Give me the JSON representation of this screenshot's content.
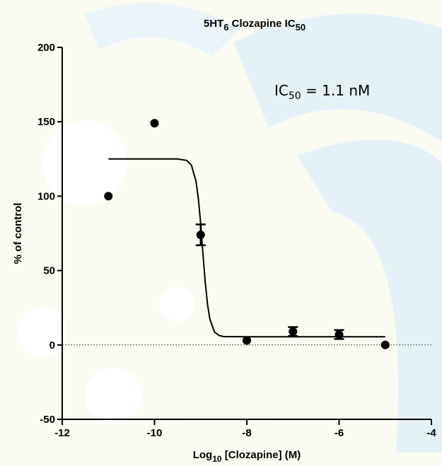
{
  "chart_data": {
    "type": "scatter",
    "title_parts": [
      "5HT",
      "6",
      " Clozapine IC",
      "50"
    ],
    "annotation_parts": [
      "IC",
      "50",
      " = 1.1 nM"
    ],
    "xlabel_parts": [
      "Log",
      "10",
      " [Clozapine] (M)"
    ],
    "ylabel": "% of control",
    "x": [
      -11,
      -10,
      -9,
      -8,
      -7,
      -6,
      -5
    ],
    "series": [
      {
        "color": "#000000",
        "values": [
          100,
          149,
          74,
          3,
          9,
          7,
          0
        ],
        "errors": [
          null,
          null,
          7,
          null,
          3,
          3,
          null
        ]
      }
    ],
    "fit": {
      "color": "#000000",
      "x": [
        -11,
        -10,
        -9.5,
        -9.3,
        -9.2,
        -9.1,
        -9.05,
        -9.0,
        -8.95,
        -8.9,
        -8.85,
        -8.8,
        -8.7,
        -8.6,
        -8.5,
        -8,
        -5
      ],
      "y": [
        125,
        125,
        125,
        124,
        120.8,
        109.9,
        98.3,
        81.4,
        61.1,
        41.8,
        27,
        17.3,
        8.7,
        6.3,
        5.6,
        5.5,
        5.5
      ]
    },
    "xlim": [
      -12,
      -4
    ],
    "ylim": [
      -50,
      200
    ],
    "xticks": [
      -12,
      -10,
      -8,
      -6,
      -4
    ],
    "yticks": [
      -50,
      0,
      50,
      100,
      150,
      200
    ],
    "zero_line": true
  }
}
